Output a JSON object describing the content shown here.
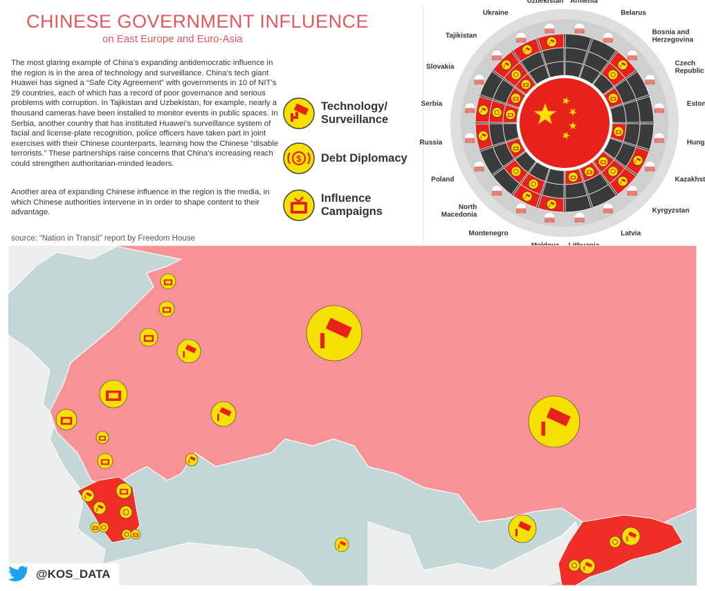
{
  "title": "CHINESE GOVERNMENT INFLUENCE",
  "subtitle": "on East Europe and Euro-Asia",
  "paragraphs": [
    "The most glaring example of China’s expanding antidemocratic influence in the region is in the area of technology and surveillance. China’s tech giant Huawei has signed a “Safe City Agreement” with governments in 10 of NIT’s 29 countries, each of which has a record of poor governance and serious problems with corruption. In Tajikistan and Uzbekistan, for example, nearly a thousand cameras have been installed to monitor events in public spaces. In Serbia, another country that has instituted Huawei’s surveillance system of facial and license-plate recognition, police officers have taken part in joint exercises with their Chinese counterparts, learning how the Chinese “disable terrorists.” These partnerships raise concerns that China’s increasing reach could strengthen authoritarian-minded leaders.",
    "Another area of expanding Chinese influence in the region is the media, in which Chinese authorities intervene in in order to shape content to their advantage."
  ],
  "legend": [
    {
      "label": "Technology/\nSurveillance",
      "icon": "camera-icon"
    },
    {
      "label": "Debt Diplomacy",
      "icon": "dollar-coin-icon"
    },
    {
      "label": "Influence\nCampaigns",
      "icon": "tv-icon"
    }
  ],
  "source": "source: “Nation in Transit” report by Freedom House",
  "handle": "@KOS_DATA",
  "colors": {
    "accent": "#e4575c",
    "icon_fill": "#f5e000",
    "icon_red": "#e8221b",
    "land": "#f99296",
    "highlight": "#ee2e27",
    "sea": "#c4d6d8",
    "other_land": "#eceeee",
    "ring_gray": "#dedede",
    "ring_dark": "#3a3a3a"
  },
  "countries": [
    {
      "name": "Armenia",
      "tech": false,
      "debt": false,
      "media": false
    },
    {
      "name": "Belarus",
      "tech": false,
      "debt": false,
      "media": false
    },
    {
      "name": "Bosnia and\nHerzegovina",
      "tech": true,
      "debt": true,
      "media": false
    },
    {
      "name": "Czech\nRepublic",
      "tech": false,
      "debt": false,
      "media": true
    },
    {
      "name": "Estonia",
      "tech": false,
      "debt": false,
      "media": false
    },
    {
      "name": "Hungary",
      "tech": false,
      "debt": false,
      "media": true
    },
    {
      "name": "Kazakhstan",
      "tech": true,
      "debt": false,
      "media": false
    },
    {
      "name": "Kyrgyzstan",
      "tech": true,
      "debt": true,
      "media": true
    },
    {
      "name": "Latvia",
      "tech": false,
      "debt": false,
      "media": true
    },
    {
      "name": "Lithuania",
      "tech": false,
      "debt": false,
      "media": true
    },
    {
      "name": "Moldova",
      "tech": true,
      "debt": false,
      "media": false
    },
    {
      "name": "Montenegro",
      "tech": true,
      "debt": true,
      "media": false
    },
    {
      "name": "North\nMacedonia",
      "tech": false,
      "debt": true,
      "media": false
    },
    {
      "name": "Poland",
      "tech": false,
      "debt": false,
      "media": true
    },
    {
      "name": "Russia",
      "tech": true,
      "debt": false,
      "media": false
    },
    {
      "name": "Serbia",
      "tech": true,
      "debt": true,
      "media": true
    },
    {
      "name": "Slovakia",
      "tech": false,
      "debt": false,
      "media": true
    },
    {
      "name": "Tajikistan",
      "tech": true,
      "debt": true,
      "media": true
    },
    {
      "name": "Ukraine",
      "tech": true,
      "debt": false,
      "media": false
    },
    {
      "name": "Uzbekistan",
      "tech": true,
      "debt": false,
      "media": false
    }
  ]
}
